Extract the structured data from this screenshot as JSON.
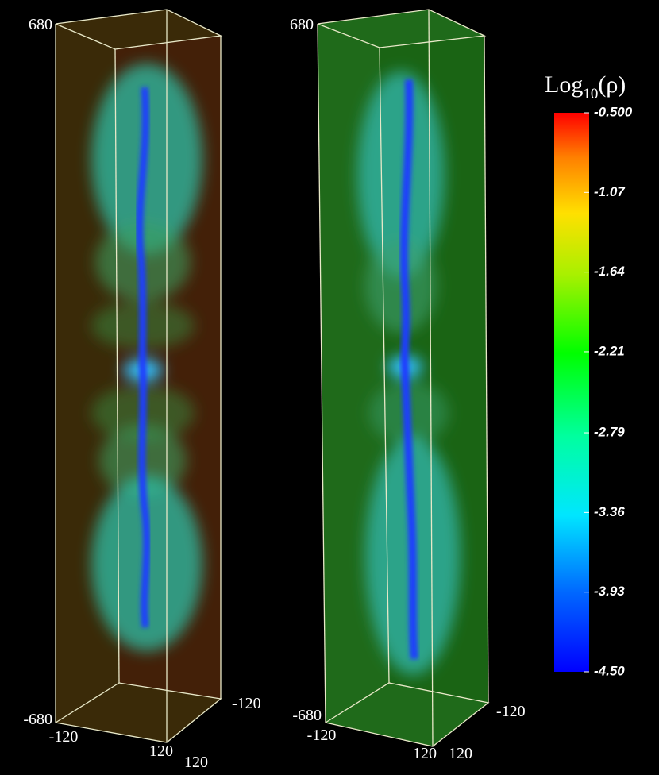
{
  "panels": [
    {
      "z_top": 680,
      "z_bottom": -680,
      "x_left": -120,
      "x_right": 120,
      "y_back": -120,
      "y_front": 120
    },
    {
      "z_top": 680,
      "z_bottom": -680,
      "x_left": -120,
      "x_right": 120,
      "y_back": -120,
      "y_front": 120
    }
  ],
  "colorbar": {
    "title": "Log",
    "title_subscript": "10",
    "title_symbol": "(ρ)",
    "range": [
      -4.5,
      -0.5
    ],
    "ticks": [
      {
        "value": -0.5,
        "label": "-0.500"
      },
      {
        "value": -1.07,
        "label": "-1.07"
      },
      {
        "value": -1.64,
        "label": "-1.64"
      },
      {
        "value": -2.21,
        "label": "-2.21"
      },
      {
        "value": -2.79,
        "label": "-2.79"
      },
      {
        "value": -3.36,
        "label": "-3.36"
      },
      {
        "value": -3.93,
        "label": "-3.93"
      },
      {
        "value": -4.5,
        "label": "-4.50"
      }
    ]
  }
}
